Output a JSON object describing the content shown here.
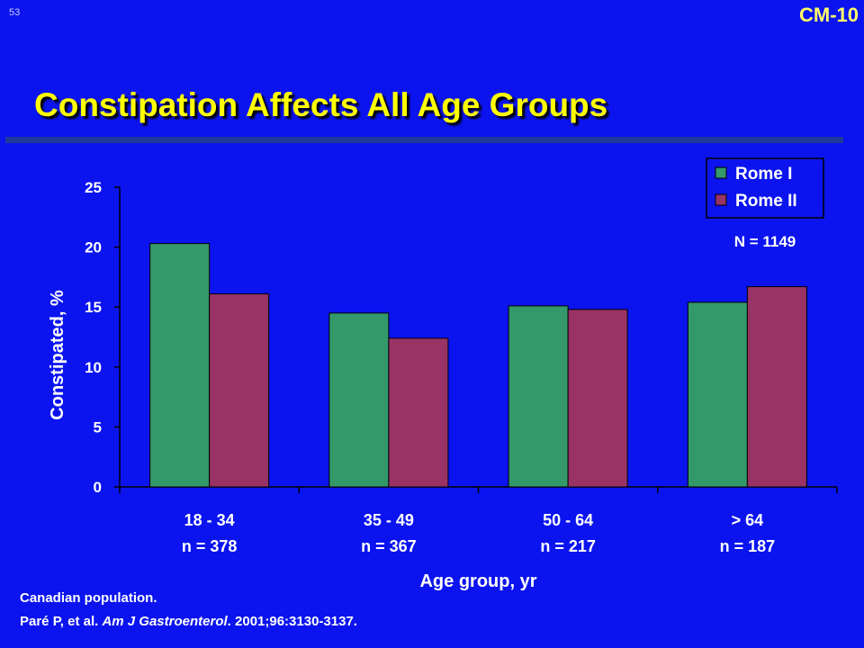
{
  "slide": {
    "number": "53",
    "code": "CM-10",
    "title": "Constipation Affects All Age Groups"
  },
  "colors": {
    "background": "#0b14ef",
    "title": "#ffff00",
    "rome1": "#33996b",
    "rome2": "#993366"
  },
  "chart_data": {
    "type": "bar",
    "categories": [
      "18 - 34",
      "35 - 49",
      "50 - 64",
      "> 64"
    ],
    "category_counts": [
      "n = 378",
      "n = 367",
      "n = 217",
      "n = 187"
    ],
    "series": [
      {
        "name": "Rome I",
        "values": [
          20.3,
          14.5,
          15.1,
          15.4
        ]
      },
      {
        "name": "Rome II",
        "values": [
          16.1,
          12.4,
          14.8,
          16.7
        ]
      }
    ],
    "xlabel": "Age group, yr",
    "ylabel": "Constipated, %",
    "ylim": [
      0,
      25
    ],
    "yticks": [
      "0",
      "5",
      "10",
      "15",
      "20",
      "25"
    ],
    "annotation": "N = 1149",
    "legend_position": "top-right",
    "grid": false
  },
  "footer": {
    "line1": "Canadian population.",
    "line2_prefix": "Paré P, et al. ",
    "line2_journal": "Am J Gastroenterol",
    "line2_suffix": ". 2001;96:3130-3137."
  }
}
